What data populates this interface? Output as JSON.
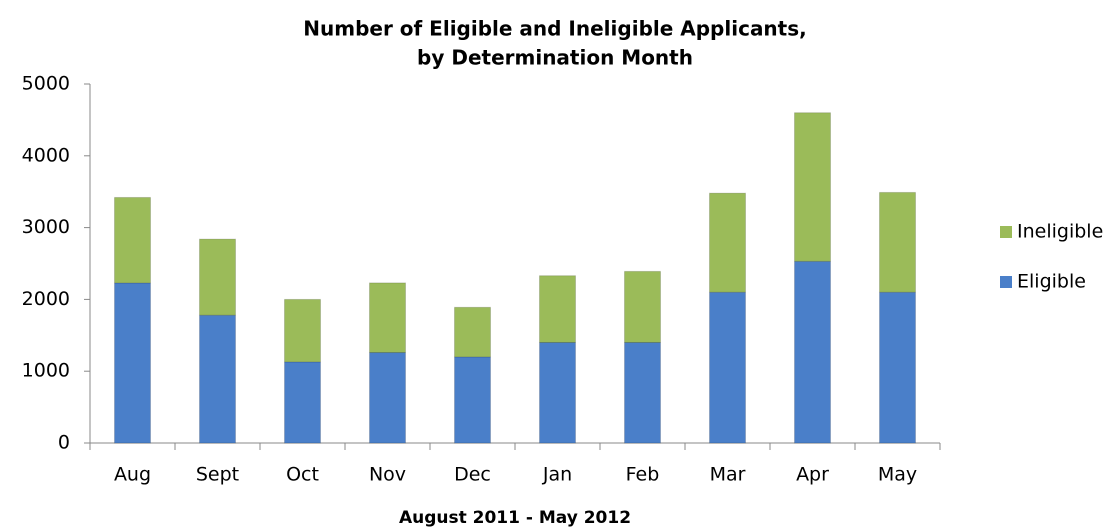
{
  "chart_data": {
    "type": "stacked_bar",
    "title": [
      "Number of Eligible and Ineligible Applicants,",
      "by Determination Month"
    ],
    "x_label": "August 2011 - May 2012",
    "categories": [
      "Aug",
      "Sept",
      "Oct",
      "Nov",
      "Dec",
      "Jan",
      "Feb",
      "Mar",
      "Apr",
      "May"
    ],
    "series": [
      {
        "name": "Eligible",
        "color": "#4a7fc9",
        "values": [
          2230,
          1780,
          1130,
          1260,
          1200,
          1400,
          1400,
          2100,
          2530,
          2100
        ]
      },
      {
        "name": "Ineligible",
        "color": "#9bbb59",
        "values": [
          1190,
          1060,
          870,
          970,
          690,
          930,
          990,
          1380,
          2070,
          1390
        ]
      }
    ],
    "ylim": [
      0,
      5000
    ],
    "yticks": [
      0,
      1000,
      2000,
      3000,
      4000,
      5000
    ],
    "grid": false,
    "legend": "right"
  }
}
